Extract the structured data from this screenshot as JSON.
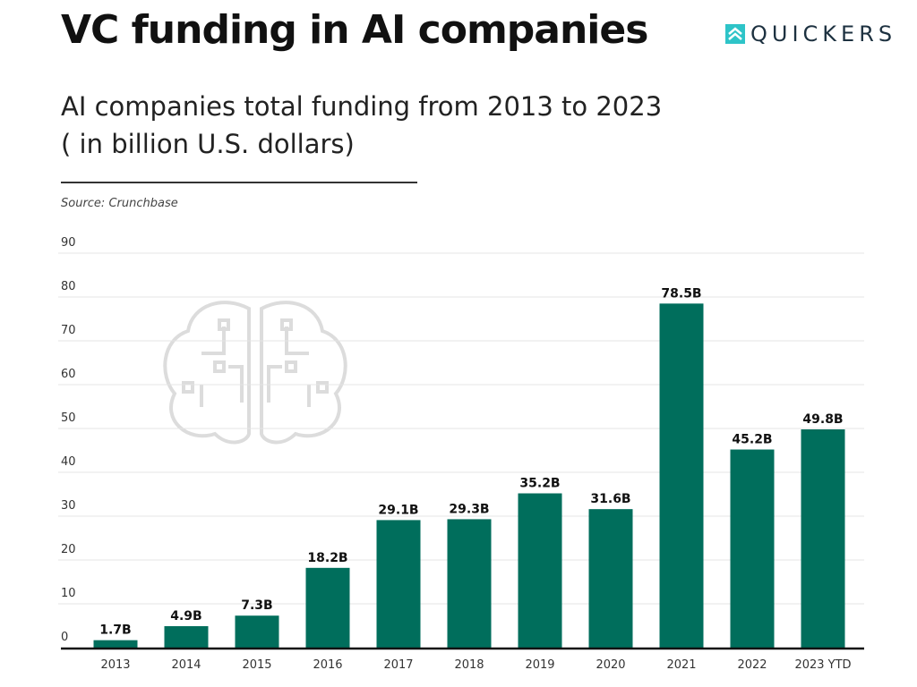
{
  "header": {
    "title": "VC funding in AI companies",
    "subtitle_line1": "AI companies total funding from 2013 to 2023",
    "subtitle_line2": "( in billion U.S. dollars)",
    "source": "Source: Crunchbase",
    "logo_text": "QUICKERS"
  },
  "colors": {
    "bar": "#006e5c",
    "grid": "#e4e4e4",
    "axis": "#111111",
    "logo_accent": "#2ec4c8"
  },
  "chart_data": {
    "type": "bar",
    "title": "AI companies total funding from 2013 to 2023 ( in billion U.S. dollars)",
    "xlabel": "",
    "ylabel": "",
    "categories": [
      "2013",
      "2014",
      "2015",
      "2016",
      "2017",
      "2018",
      "2019",
      "2020",
      "2021",
      "2022",
      "2023 YTD"
    ],
    "values": [
      1.7,
      4.9,
      7.3,
      18.2,
      29.1,
      29.3,
      35.2,
      31.6,
      78.5,
      45.2,
      49.8
    ],
    "data_labels": [
      "1.7B",
      "4.9B",
      "7.3B",
      "18.2B",
      "29.1B",
      "29.3B",
      "35.2B",
      "31.6B",
      "78.5B",
      "45.2B",
      "49.8B"
    ],
    "ylim": [
      0,
      90
    ],
    "yticks": [
      "0",
      "10",
      "20",
      "30",
      "40",
      "50",
      "60",
      "70",
      "80",
      "90"
    ],
    "grid": true,
    "legend": "none"
  }
}
